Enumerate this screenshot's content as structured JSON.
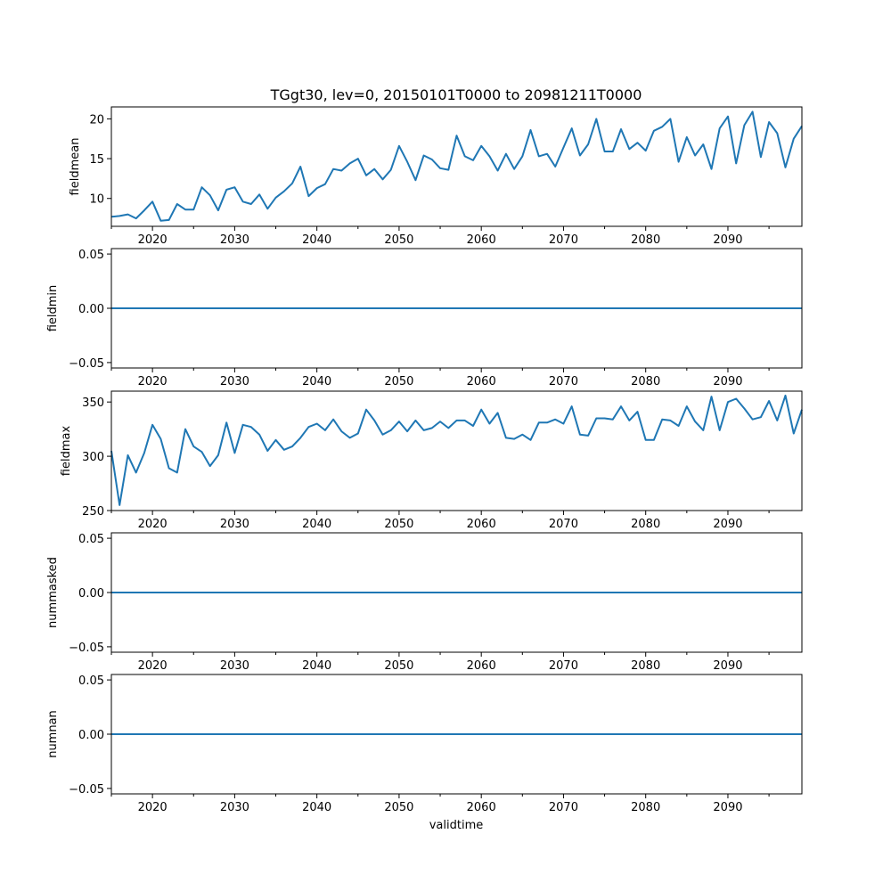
{
  "title": "TGgt30, lev=0, 20150101T0000 to 20981211T0000",
  "xlabel": "validtime",
  "line_color": "#1f77b4",
  "chart_data": [
    {
      "type": "line",
      "ylabel": "fieldmean",
      "xlim": [
        2015,
        2099
      ],
      "ylim": [
        6.5,
        21.5
      ],
      "x_ticks": [
        2020,
        2030,
        2040,
        2050,
        2060,
        2070,
        2080,
        2090
      ],
      "x_tick_labels": [
        "2020",
        "2030",
        "2040",
        "2050",
        "2060",
        "2070",
        "2080",
        "2090"
      ],
      "y_ticks": [
        10,
        15,
        20
      ],
      "y_tick_labels": [
        "10",
        "15",
        "20"
      ],
      "x_start": 2015,
      "values": [
        7.7,
        7.8,
        8.0,
        7.5,
        8.5,
        9.6,
        7.2,
        7.3,
        9.3,
        8.6,
        8.6,
        11.4,
        10.4,
        8.5,
        11.1,
        11.4,
        9.6,
        9.3,
        10.5,
        8.7,
        10.1,
        10.9,
        11.9,
        14.0,
        10.3,
        11.3,
        11.8,
        13.7,
        13.5,
        14.4,
        15.0,
        12.9,
        13.7,
        12.4,
        13.6,
        16.6,
        14.6,
        12.3,
        15.4,
        14.9,
        13.8,
        13.6,
        17.9,
        15.3,
        14.8,
        16.6,
        15.3,
        13.5,
        15.6,
        13.7,
        15.3,
        18.6,
        15.3,
        15.6,
        14.0,
        16.4,
        18.8,
        15.4,
        16.8,
        20.0,
        15.9,
        15.9,
        18.7,
        16.2,
        17.0,
        16.0,
        18.5,
        19.0,
        20.0,
        14.6,
        17.7,
        15.4,
        16.8,
        13.7,
        18.8,
        20.3,
        14.4,
        19.2,
        20.9,
        15.2,
        19.6,
        18.2,
        13.9,
        17.5,
        19.1
      ]
    },
    {
      "type": "line",
      "ylabel": "fieldmin",
      "xlim": [
        2015,
        2099
      ],
      "ylim": [
        -0.055,
        0.055
      ],
      "x_ticks": [
        2020,
        2030,
        2040,
        2050,
        2060,
        2070,
        2080,
        2090
      ],
      "x_tick_labels": [
        "2020",
        "2030",
        "2040",
        "2050",
        "2060",
        "2070",
        "2080",
        "2090"
      ],
      "y_ticks": [
        -0.05,
        0.0,
        0.05
      ],
      "y_tick_labels": [
        "−0.05",
        "0.00",
        "0.05"
      ],
      "x_start": 2015,
      "constant": 0.0
    },
    {
      "type": "line",
      "ylabel": "fieldmax",
      "xlim": [
        2015,
        2099
      ],
      "ylim": [
        250,
        360
      ],
      "x_ticks": [
        2020,
        2030,
        2040,
        2050,
        2060,
        2070,
        2080,
        2090
      ],
      "x_tick_labels": [
        "2020",
        "2030",
        "2040",
        "2050",
        "2060",
        "2070",
        "2080",
        "2090"
      ],
      "y_ticks": [
        250,
        300,
        350
      ],
      "y_tick_labels": [
        "250",
        "300",
        "350"
      ],
      "x_start": 2015,
      "values": [
        305,
        255,
        301,
        285,
        303,
        329,
        316,
        289,
        285,
        325,
        309,
        304,
        291,
        301,
        331,
        303,
        329,
        327,
        320,
        305,
        315,
        306,
        309,
        317,
        327,
        330,
        324,
        334,
        323,
        317,
        321,
        343,
        333,
        320,
        324,
        332,
        323,
        333,
        324,
        326,
        332,
        326,
        333,
        333,
        328,
        343,
        330,
        340,
        317,
        316,
        320,
        315,
        331,
        331,
        334,
        330,
        346,
        320,
        319,
        335,
        335,
        334,
        346,
        333,
        341,
        315,
        315,
        334,
        333,
        328,
        346,
        332,
        324,
        355,
        324,
        350,
        353,
        344,
        334,
        336,
        351,
        333,
        356,
        321,
        343
      ]
    },
    {
      "type": "line",
      "ylabel": "nummasked",
      "xlim": [
        2015,
        2099
      ],
      "ylim": [
        -0.055,
        0.055
      ],
      "x_ticks": [
        2020,
        2030,
        2040,
        2050,
        2060,
        2070,
        2080,
        2090
      ],
      "x_tick_labels": [
        "2020",
        "2030",
        "2040",
        "2050",
        "2060",
        "2070",
        "2080",
        "2090"
      ],
      "y_ticks": [
        -0.05,
        0.0,
        0.05
      ],
      "y_tick_labels": [
        "−0.05",
        "0.00",
        "0.05"
      ],
      "x_start": 2015,
      "constant": 0.0
    },
    {
      "type": "line",
      "ylabel": "numnan",
      "xlim": [
        2015,
        2099
      ],
      "ylim": [
        -0.055,
        0.055
      ],
      "x_ticks": [
        2020,
        2030,
        2040,
        2050,
        2060,
        2070,
        2080,
        2090
      ],
      "x_tick_labels": [
        "2020",
        "2030",
        "2040",
        "2050",
        "2060",
        "2070",
        "2080",
        "2090"
      ],
      "y_ticks": [
        -0.05,
        0.0,
        0.05
      ],
      "y_tick_labels": [
        "−0.05",
        "0.00",
        "0.05"
      ],
      "x_start": 2015,
      "constant": 0.0
    }
  ]
}
